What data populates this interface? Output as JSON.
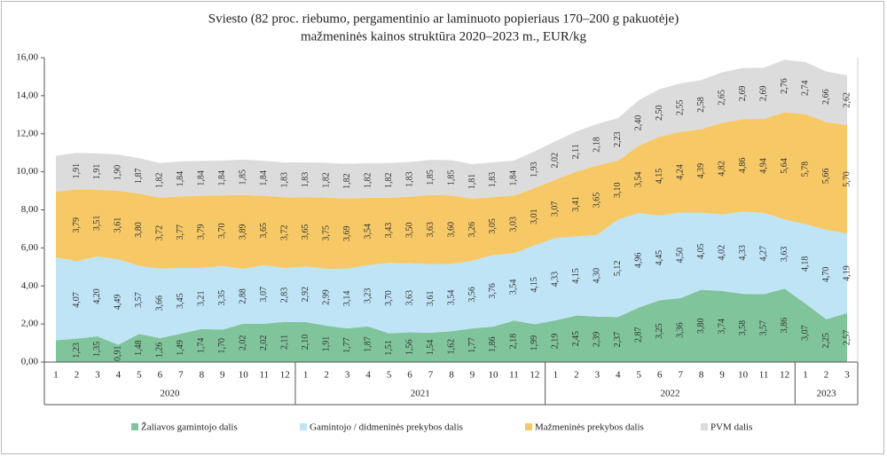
{
  "chart_data": {
    "type": "stacked-area",
    "title": "Sviesto (82 proc. riebumo, pergamentinio ar laminuoto popieriaus 170–200 g pakuotėje)",
    "subtitle": "mažmeninės kainos struktūra 2020–2023 m., EUR/kg",
    "categories": [
      "1",
      "2",
      "3",
      "4",
      "5",
      "6",
      "7",
      "8",
      "9",
      "10",
      "11",
      "12",
      "1",
      "2",
      "3",
      "4",
      "5",
      "6",
      "7",
      "8",
      "9",
      "10",
      "11",
      "12",
      "1",
      "2",
      "3",
      "4",
      "5",
      "6",
      "7",
      "8",
      "9",
      "10",
      "11",
      "12",
      "1",
      "2",
      "3"
    ],
    "category_groups": [
      "2020",
      "2021",
      "2022",
      "2023"
    ],
    "ylim": [
      0,
      16
    ],
    "yticks": [
      {
        "value": 0,
        "label": "0,00"
      },
      {
        "value": 2,
        "label": "2,00"
      },
      {
        "value": 4,
        "label": "4,00"
      },
      {
        "value": 6,
        "label": "6,00"
      },
      {
        "value": 8,
        "label": "8,00"
      },
      {
        "value": 10,
        "label": "10,00"
      },
      {
        "value": 12,
        "label": "12,00"
      },
      {
        "value": 14,
        "label": "14,00"
      },
      {
        "value": 16,
        "label": "16,00"
      }
    ],
    "grid": false,
    "legend": "bottom",
    "series": [
      {
        "name": "Žaliavos gamintojo dalis",
        "color": "#80c49b",
        "values": [
          1.15,
          1.23,
          1.35,
          0.91,
          1.48,
          1.26,
          1.49,
          1.74,
          1.7,
          2.02,
          2.02,
          2.11,
          2.1,
          1.91,
          1.77,
          1.87,
          1.51,
          1.56,
          1.54,
          1.62,
          1.77,
          1.86,
          2.18,
          1.99,
          2.19,
          2.45,
          2.39,
          2.37,
          2.87,
          3.25,
          3.36,
          3.8,
          3.74,
          3.58,
          3.57,
          3.86,
          3.07,
          2.25,
          2.57
        ],
        "value_labels": [
          null,
          "1,23",
          "1,35",
          "0,91",
          "1,48",
          "1,26",
          "1,49",
          "1,74",
          "1,70",
          "2,02",
          "2,02",
          "2,11",
          "2,10",
          "1,91",
          "1,77",
          "1,87",
          "1,51",
          "1,56",
          "1,54",
          "1,62",
          "1,77",
          "1,86",
          "2,18",
          "1,99",
          "2,19",
          "2,45",
          "2,39",
          "2,37",
          "2,87",
          "3,25",
          "3,36",
          "3,80",
          "3,74",
          "3,58",
          "3,57",
          "3,86",
          "3,07",
          "2,25",
          "2,57"
        ]
      },
      {
        "name": "Gamintojo / didmeninės prekybos dalis",
        "color": "#bfe4f6",
        "values": [
          4.35,
          4.07,
          4.2,
          4.49,
          3.57,
          3.66,
          3.45,
          3.21,
          3.35,
          2.88,
          3.07,
          2.83,
          2.92,
          2.99,
          3.14,
          3.23,
          3.7,
          3.63,
          3.61,
          3.54,
          3.56,
          3.76,
          3.54,
          4.15,
          4.33,
          4.15,
          4.3,
          5.12,
          4.96,
          4.45,
          4.5,
          4.05,
          4.02,
          4.33,
          4.27,
          3.63,
          4.18,
          4.7,
          4.19
        ],
        "value_labels": [
          null,
          "4,07",
          "4,20",
          "4,49",
          "3,57",
          "3,66",
          "3,45",
          "3,21",
          "3,35",
          "2,88",
          "3,07",
          "2,83",
          "2,92",
          "2,99",
          "3,14",
          "3,23",
          "3,70",
          "3,63",
          "3,61",
          "3,54",
          "3,56",
          "3,76",
          "3,54",
          "4,15",
          "4,33",
          "4,15",
          "4,30",
          "5,12",
          "4,96",
          "4,45",
          "4,50",
          "4,05",
          "4,02",
          "4,33",
          "4,27",
          "3,63",
          "4,18",
          "4,70",
          "4,19"
        ]
      },
      {
        "name": "Mažmeninės prekybos dalis",
        "color": "#f6c866",
        "values": [
          3.45,
          3.79,
          3.51,
          3.61,
          3.8,
          3.72,
          3.77,
          3.79,
          3.7,
          3.89,
          3.65,
          3.72,
          3.65,
          3.75,
          3.69,
          3.54,
          3.43,
          3.5,
          3.63,
          3.6,
          3.26,
          3.05,
          3.03,
          3.01,
          3.07,
          3.41,
          3.65,
          3.1,
          3.54,
          4.15,
          4.24,
          4.39,
          4.82,
          4.86,
          4.94,
          5.64,
          5.78,
          5.66,
          5.7
        ],
        "value_labels": [
          null,
          "3,79",
          "3,51",
          "3,61",
          "3,80",
          "3,72",
          "3,77",
          "3,79",
          "3,70",
          "3,89",
          "3,65",
          "3,72",
          "3,65",
          "3,75",
          "3,69",
          "3,54",
          "3,43",
          "3,50",
          "3,63",
          "3,60",
          "3,26",
          "3,05",
          "3,03",
          "3,01",
          "3,07",
          "3,41",
          "3,65",
          "3,10",
          "3,54",
          "4,15",
          "4,24",
          "4,39",
          "4,82",
          "4,86",
          "4,94",
          "5,64",
          "5,78",
          "5,66",
          "5,70"
        ]
      },
      {
        "name": "PVM dalis",
        "color": "#dcdcdc",
        "values": [
          1.9,
          1.91,
          1.91,
          1.9,
          1.87,
          1.82,
          1.84,
          1.84,
          1.84,
          1.85,
          1.84,
          1.83,
          1.83,
          1.82,
          1.82,
          1.82,
          1.82,
          1.83,
          1.85,
          1.85,
          1.81,
          1.83,
          1.84,
          1.93,
          2.02,
          2.11,
          2.18,
          2.23,
          2.4,
          2.5,
          2.55,
          2.58,
          2.65,
          2.69,
          2.69,
          2.76,
          2.74,
          2.66,
          2.62
        ],
        "value_labels": [
          null,
          "1,91",
          "1,91",
          "1,90",
          "1,87",
          "1,82",
          "1,84",
          "1,84",
          "1,84",
          "1,85",
          "1,84",
          "1,83",
          "1,83",
          "1,82",
          "1,82",
          "1,82",
          "1,82",
          "1,83",
          "1,85",
          "1,85",
          "1,81",
          "1,83",
          "1,84",
          "1,93",
          "2,02",
          "2,11",
          "2,18",
          "2,23",
          "2,40",
          "2,50",
          "2,55",
          "2,58",
          "2,65",
          "2,69",
          "2,69",
          "2,76",
          "2,74",
          "2,66",
          "2,62"
        ]
      }
    ]
  }
}
